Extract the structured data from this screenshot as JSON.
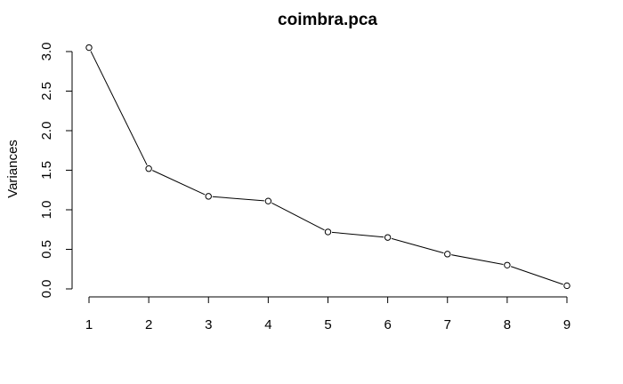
{
  "chart_data": {
    "type": "line",
    "title": "coimbra.pca",
    "xlabel": "",
    "ylabel": "Variances",
    "x": [
      1,
      2,
      3,
      4,
      5,
      6,
      7,
      8,
      9
    ],
    "xticks": [
      "1",
      "2",
      "3",
      "4",
      "5",
      "6",
      "7",
      "8",
      "9"
    ],
    "yticks": [
      "0.0",
      "0.5",
      "1.0",
      "1.5",
      "2.0",
      "2.5",
      "3.0"
    ],
    "ylim": [
      0,
      3
    ],
    "xlim": [
      1,
      9
    ],
    "grid": false,
    "series": [
      {
        "values": [
          3.05,
          1.52,
          1.17,
          1.11,
          0.72,
          0.65,
          0.44,
          0.3,
          0.04
        ],
        "color": "#000000",
        "marker": "open-circle"
      }
    ]
  }
}
